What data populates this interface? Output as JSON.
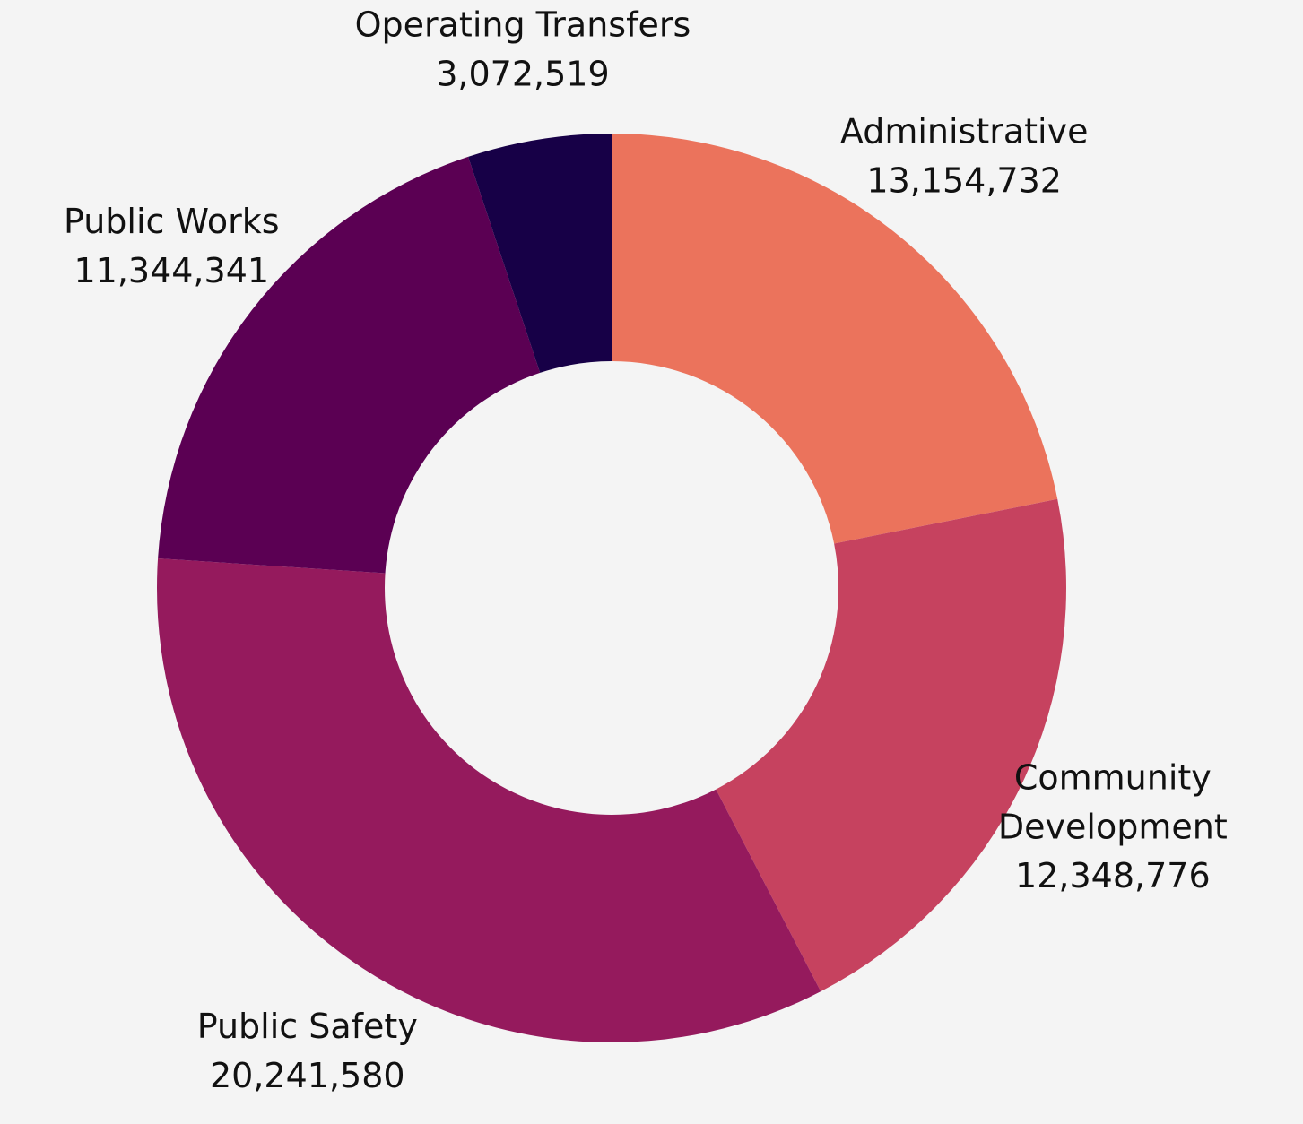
{
  "chart_data": {
    "type": "donut",
    "categories": [
      "Administrative",
      "Community Development",
      "Public Safety",
      "Public Works",
      "Operating Transfers"
    ],
    "values": [
      13154732,
      12348776,
      20241580,
      11344341,
      3072519
    ],
    "value_labels": [
      "13,154,732",
      "12,348,776",
      "20,241,580",
      "11,344,341",
      "3,072,519"
    ],
    "colors": [
      "#eb735c",
      "#c6425f",
      "#951a5d",
      "#5b0053",
      "#170047"
    ]
  }
}
